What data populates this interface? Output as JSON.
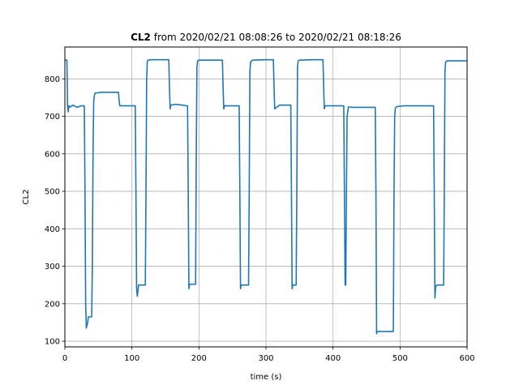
{
  "chart_data": {
    "type": "line",
    "title_bold": "CL2",
    "title_rest": " from 2020/02/21 08:08:26 to 2020/02/21 08:18:26",
    "xlabel": "time (s)",
    "ylabel": "CL2",
    "xlim": [
      0,
      600
    ],
    "ylim": [
      85,
      885
    ],
    "xticks": [
      0,
      100,
      200,
      300,
      400,
      500,
      600
    ],
    "yticks": [
      100,
      200,
      300,
      400,
      500,
      600,
      700,
      800
    ],
    "grid": true,
    "line_color": "#1f77b4",
    "series": [
      {
        "x": [
          0,
          3,
          3.5,
          4,
          5,
          6,
          8,
          12,
          18,
          24,
          29,
          30,
          31,
          32,
          34,
          35,
          37,
          40,
          41,
          42,
          43,
          44,
          45,
          55,
          70,
          80,
          81,
          82,
          84,
          95,
          105,
          106,
          107,
          108,
          110,
          120,
          121,
          122,
          123,
          124,
          130,
          140,
          150,
          155,
          156,
          157,
          158,
          165,
          175,
          183,
          184,
          185,
          186,
          187,
          195,
          196,
          197,
          198,
          200,
          220,
          235,
          236,
          237,
          238,
          240,
          250,
          260,
          261,
          262,
          263,
          265,
          270,
          274,
          275,
          276,
          277,
          280,
          300,
          310,
          311,
          312,
          313,
          320,
          330,
          337,
          338,
          339,
          340,
          345,
          346,
          347,
          348,
          350,
          370,
          385,
          386,
          387,
          388,
          390,
          405,
          416,
          417,
          418,
          419,
          420,
          421,
          423,
          425,
          430,
          445,
          463,
          464,
          465,
          466,
          475,
          490,
          491,
          492,
          493,
          495,
          505,
          515,
          530,
          550,
          551,
          552,
          553,
          555,
          565,
          566,
          567,
          568,
          570,
          585,
          600
        ],
        "values": [
          850,
          850,
          800,
          730,
          712,
          728,
          725,
          730,
          724,
          728,
          728,
          500,
          200,
          135,
          150,
          165,
          165,
          165,
          300,
          600,
          740,
          755,
          762,
          764,
          764,
          764,
          740,
          728,
          728,
          728,
          728,
          500,
          240,
          220,
          250,
          250,
          500,
          800,
          848,
          850,
          851,
          851,
          851,
          851,
          780,
          720,
          730,
          732,
          730,
          728,
          500,
          240,
          252,
          252,
          252,
          600,
          830,
          848,
          850,
          850,
          850,
          780,
          720,
          728,
          728,
          728,
          728,
          500,
          240,
          250,
          250,
          250,
          250,
          500,
          820,
          845,
          850,
          851,
          851,
          851,
          780,
          720,
          730,
          730,
          730,
          500,
          240,
          250,
          250,
          500,
          830,
          848,
          850,
          851,
          851,
          780,
          720,
          728,
          728,
          728,
          728,
          500,
          250,
          250,
          500,
          700,
          725,
          725,
          724,
          724,
          724,
          500,
          120,
          126,
          126,
          126,
          500,
          700,
          722,
          726,
          728,
          728,
          728,
          728,
          500,
          215,
          245,
          250,
          250,
          500,
          820,
          845,
          848,
          848,
          848
        ]
      }
    ]
  }
}
